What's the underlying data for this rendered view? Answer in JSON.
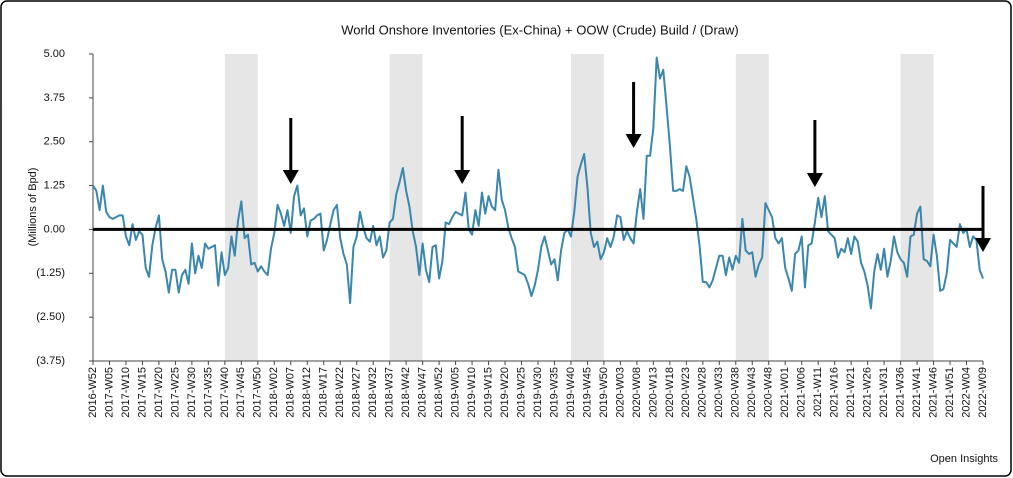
{
  "chart_data": {
    "type": "line",
    "title": "World Onshore Inventories (Ex-China) + OOW (Crude) Build / (Draw)",
    "y_label": "(Millions of Bpd)",
    "source": "Open Insights",
    "color": "#3a86ad",
    "ylim": [
      -3.75,
      5
    ],
    "yticks": [
      {
        "value": 5,
        "label": "5.00"
      },
      {
        "value": 3.75,
        "label": "3.75"
      },
      {
        "value": 2.5,
        "label": "2.50"
      },
      {
        "value": 1.25,
        "label": "1.25"
      },
      {
        "value": 0,
        "label": "0.00"
      },
      {
        "value": -1.25,
        "label": "(1.25)"
      },
      {
        "value": -2.5,
        "label": "(2.50)"
      },
      {
        "value": -3.75,
        "label": "(3.75)"
      }
    ],
    "categories": [
      "2016-W52",
      null,
      null,
      null,
      null,
      "2017-W05",
      null,
      null,
      null,
      null,
      "2017-W10",
      null,
      null,
      null,
      null,
      "2017-W15",
      null,
      null,
      null,
      null,
      "2017-W20",
      null,
      null,
      null,
      null,
      "2017-W25",
      null,
      null,
      null,
      null,
      "2017-W30",
      null,
      null,
      null,
      null,
      "2017-W35",
      null,
      null,
      null,
      null,
      "2017-W40",
      null,
      null,
      null,
      null,
      "2017-W45",
      null,
      null,
      null,
      null,
      "2017-W50",
      null,
      null,
      null,
      null,
      "2018-W02",
      null,
      null,
      null,
      null,
      "2018-W07",
      null,
      null,
      null,
      null,
      "2018-W12",
      null,
      null,
      null,
      null,
      "2018-W17",
      null,
      null,
      null,
      null,
      "2018-W22",
      null,
      null,
      null,
      null,
      "2018-W27",
      null,
      null,
      null,
      null,
      "2018-W32",
      null,
      null,
      null,
      null,
      "2018-W37",
      null,
      null,
      null,
      null,
      "2018-W42",
      null,
      null,
      null,
      null,
      "2018-W47",
      null,
      null,
      null,
      null,
      "2018-W52",
      null,
      null,
      null,
      null,
      "2019-W05",
      null,
      null,
      null,
      null,
      "2019-W10",
      null,
      null,
      null,
      null,
      "2019-W15",
      null,
      null,
      null,
      null,
      "2019-W20",
      null,
      null,
      null,
      null,
      "2019-W25",
      null,
      null,
      null,
      null,
      "2019-W30",
      null,
      null,
      null,
      null,
      "2019-W35",
      null,
      null,
      null,
      null,
      "2019-W40",
      null,
      null,
      null,
      null,
      "2019-W45",
      null,
      null,
      null,
      null,
      "2019-W50",
      null,
      null,
      null,
      null,
      "2020-W03",
      null,
      null,
      null,
      null,
      "2020-W08",
      null,
      null,
      null,
      null,
      "2020-W13",
      null,
      null,
      null,
      null,
      "2020-W18",
      null,
      null,
      null,
      null,
      "2020-W23",
      null,
      null,
      null,
      null,
      "2020-W28",
      null,
      null,
      null,
      null,
      "2020-W33",
      null,
      null,
      null,
      null,
      "2020-W38",
      null,
      null,
      null,
      null,
      "2020-W43",
      null,
      null,
      null,
      null,
      "2020-W48",
      null,
      null,
      null,
      null,
      "2021-W01",
      null,
      null,
      null,
      null,
      "2021-W06",
      null,
      null,
      null,
      null,
      "2021-W11",
      null,
      null,
      null,
      null,
      "2021-W16",
      null,
      null,
      null,
      null,
      "2021-W21",
      null,
      null,
      null,
      null,
      "2021-W26",
      null,
      null,
      null,
      null,
      "2021-W31",
      null,
      null,
      null,
      null,
      "2021-W36",
      null,
      null,
      null,
      null,
      "2021-W41",
      null,
      null,
      null,
      null,
      "2021-W46",
      null,
      null,
      null,
      null,
      "2021-W51",
      null,
      null,
      null,
      null,
      "2022-W04",
      null,
      null,
      null,
      null,
      "2022-W09"
    ],
    "values": [
      1.25,
      1.1,
      0.55,
      1.25,
      0.5,
      0.35,
      0.3,
      0.35,
      0.4,
      0.4,
      -0.2,
      -0.45,
      0.15,
      -0.3,
      -0.05,
      -0.15,
      -1.1,
      -1.35,
      -0.45,
      0.05,
      0.4,
      -0.85,
      -1.2,
      -1.8,
      -1.15,
      -1.15,
      -1.8,
      -1.3,
      -1.15,
      -1.55,
      -0.4,
      -1.25,
      -0.75,
      -1.1,
      -0.4,
      -0.55,
      -0.5,
      -0.45,
      -1.6,
      -0.65,
      -1.3,
      -1.1,
      -0.2,
      -0.75,
      0.25,
      0.8,
      -0.25,
      -0.15,
      -1.0,
      -0.95,
      -1.2,
      -1.05,
      -1.2,
      -1.3,
      -0.55,
      -0.1,
      0.7,
      0.45,
      0.1,
      0.55,
      -0.1,
      0.95,
      1.25,
      0.4,
      0.6,
      -0.2,
      0.25,
      0.3,
      0.4,
      0.45,
      -0.6,
      -0.3,
      0.15,
      0.55,
      0.7,
      -0.25,
      -0.7,
      -1.0,
      -2.1,
      -0.5,
      -0.2,
      0.5,
      0.05,
      -0.25,
      -0.35,
      0.1,
      -0.45,
      -0.2,
      -0.8,
      -0.6,
      0.2,
      0.3,
      1.0,
      1.35,
      1.75,
      1.1,
      0.65,
      -0.05,
      -0.5,
      -1.3,
      -0.4,
      -1.15,
      -1.5,
      -0.5,
      -0.45,
      -1.4,
      -0.9,
      0.2,
      0.15,
      0.35,
      0.5,
      0.45,
      0.4,
      1.05,
      0.0,
      -0.15,
      0.55,
      0.1,
      1.05,
      0.45,
      0.95,
      0.65,
      0.55,
      1.7,
      0.85,
      0.55,
      0.05,
      -0.25,
      -0.5,
      -1.2,
      -1.25,
      -1.3,
      -1.55,
      -1.9,
      -1.6,
      -1.15,
      -0.5,
      -0.2,
      -0.6,
      -1.0,
      -0.85,
      -1.45,
      -0.6,
      -0.1,
      0.0,
      -0.2,
      0.5,
      1.5,
      1.85,
      2.15,
      1.2,
      -0.1,
      -0.5,
      -0.35,
      -0.85,
      -0.65,
      -0.25,
      -0.5,
      -0.2,
      0.4,
      0.35,
      -0.3,
      -0.05,
      -0.25,
      -0.4,
      0.5,
      1.15,
      0.3,
      2.1,
      2.1,
      2.9,
      4.9,
      4.3,
      4.55,
      3.5,
      2.4,
      1.1,
      1.1,
      1.15,
      1.1,
      1.8,
      1.5,
      0.9,
      0.3,
      -0.45,
      -1.5,
      -1.5,
      -1.65,
      -1.45,
      -1.1,
      -0.75,
      -0.75,
      -1.3,
      -0.8,
      -1.15,
      -0.75,
      -0.95,
      0.3,
      -0.6,
      -0.7,
      -0.65,
      -1.35,
      -1.0,
      -0.8,
      0.75,
      0.55,
      0.35,
      -0.25,
      -0.4,
      -0.25,
      -1.1,
      -1.4,
      -1.75,
      -0.7,
      -0.6,
      -0.2,
      -1.65,
      -0.45,
      -0.4,
      0.2,
      0.9,
      0.35,
      0.95,
      -0.05,
      -0.15,
      -0.25,
      -0.8,
      -0.55,
      -0.65,
      -0.25,
      -0.7,
      -0.2,
      -0.35,
      -0.95,
      -1.2,
      -1.6,
      -2.25,
      -1.2,
      -0.7,
      -1.15,
      -0.55,
      -1.35,
      -0.9,
      -0.2,
      -0.65,
      -0.85,
      -0.95,
      -1.35,
      -0.2,
      -0.15,
      0.45,
      0.65,
      -0.85,
      -0.9,
      -1.05,
      -0.15,
      -0.75,
      -1.75,
      -1.7,
      -1.25,
      -0.3,
      -0.4,
      -0.5,
      0.15,
      -0.1,
      0.0,
      -0.5,
      -0.2,
      -0.3,
      -1.15,
      -1.4
    ]
  }
}
